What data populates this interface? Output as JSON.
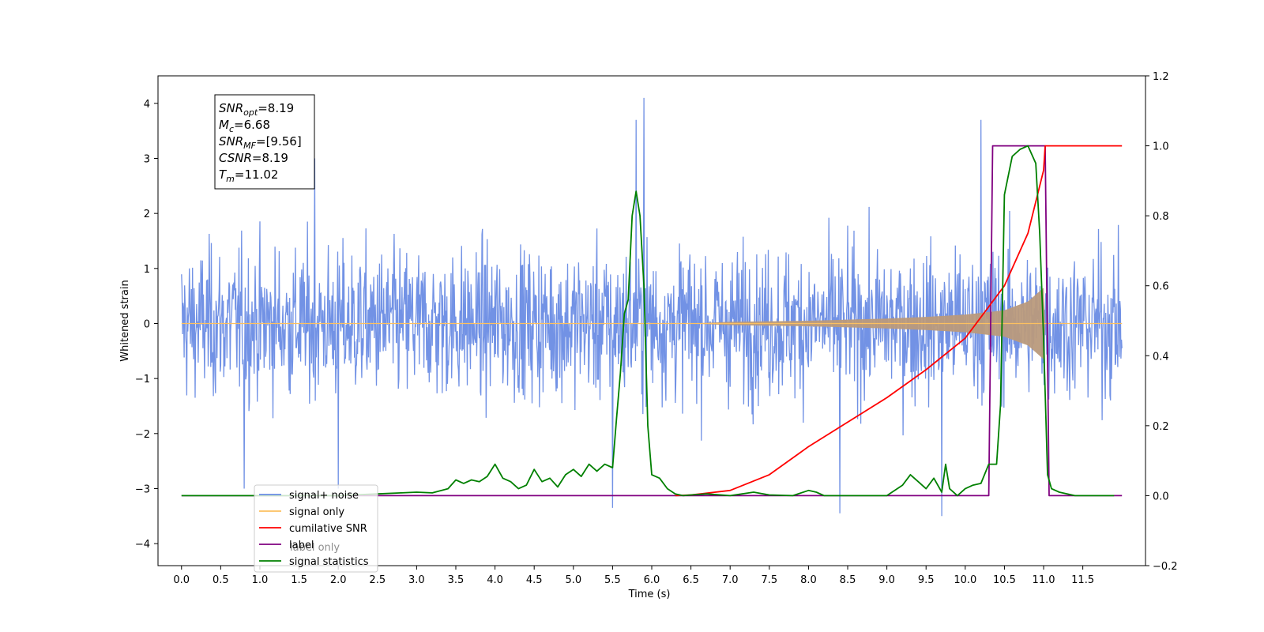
{
  "chart_data": {
    "type": "line",
    "xlabel": "Time (s)",
    "ylabel_left": "Whitened strain",
    "ylabel_right": "",
    "x_ticks": [
      "0.0",
      "0.5",
      "1.0",
      "1.5",
      "2.0",
      "2.5",
      "3.0",
      "3.5",
      "4.0",
      "4.5",
      "5.0",
      "5.5",
      "6.0",
      "6.5",
      "7.0",
      "7.5",
      "8.0",
      "8.5",
      "9.0",
      "9.5",
      "10.0",
      "10.5",
      "11.0",
      "11.5"
    ],
    "y_left_ticks": [
      "4",
      "3",
      "2",
      "1",
      "0",
      "−1",
      "−2",
      "−3",
      "−4"
    ],
    "y_right_ticks": [
      "1.2",
      "1.0",
      "0.8",
      "0.6",
      "0.4",
      "0.2",
      "0.0",
      "−0.2"
    ],
    "xlim": [
      -0.3,
      12.3
    ],
    "ylim_left": [
      -4.4,
      4.5
    ],
    "ylim_right": [
      -0.2,
      1.2
    ],
    "annotation": [
      {
        "base": "SNR",
        "sub": "opt",
        "rest": "=8.19"
      },
      {
        "base": "M",
        "sub": "c",
        "rest": "=6.68"
      },
      {
        "base": "SNR",
        "sub": "MF",
        "rest": "=[9.56]"
      },
      {
        "base": "CSNR",
        "sub": "",
        "rest": "=8.19"
      },
      {
        "base": "T",
        "sub": "m",
        "rest": "=11.02"
      }
    ],
    "legend": {
      "placement": "lower-left",
      "entries": [
        {
          "label": "signal+ noise",
          "color": "#6a8ce4"
        },
        {
          "label": "signal only",
          "color": "#fcc060"
        },
        {
          "label": "cumilative SNR",
          "color": "#ff0000"
        },
        {
          "label": "label",
          "color": "#800080"
        },
        {
          "label": "signal statistics",
          "color": "#008000"
        }
      ],
      "occluded_text": [
        "label only"
      ]
    },
    "series": [
      {
        "name": "signal+ noise",
        "axis": "left",
        "color": "#6a8ce4",
        "x_range": [
          0.0,
          12.0
        ],
        "typical_amplitude": 1.8,
        "peaks": [
          {
            "x": 5.9,
            "y": 4.1
          },
          {
            "x": 5.8,
            "y": 3.7
          },
          {
            "x": 10.2,
            "y": 3.7
          },
          {
            "x": 1.7,
            "y": 3.0
          },
          {
            "x": 5.5,
            "y": -3.35
          },
          {
            "x": 8.4,
            "y": -3.45
          },
          {
            "x": 9.7,
            "y": -3.5
          },
          {
            "x": 0.8,
            "y": -3.0
          },
          {
            "x": 2.0,
            "y": -3.0
          }
        ]
      },
      {
        "name": "signal only",
        "axis": "left",
        "color": "#fcc060",
        "envelope_x": [
          0.0,
          6.5,
          7.0,
          8.0,
          9.0,
          9.5,
          10.0,
          10.5,
          10.8,
          11.0,
          11.02,
          12.0
        ],
        "envelope_y": [
          0.0,
          0.0,
          0.03,
          0.05,
          0.09,
          0.12,
          0.16,
          0.24,
          0.4,
          0.65,
          0.0,
          0.0
        ]
      },
      {
        "name": "cumilative SNR",
        "axis": "right",
        "color": "#ff0000",
        "x": [
          6.3,
          6.5,
          7.0,
          7.5,
          8.0,
          8.5,
          9.0,
          9.5,
          10.0,
          10.5,
          10.8,
          11.0,
          11.02,
          12.0
        ],
        "values": [
          0.0,
          0.002,
          0.015,
          0.06,
          0.14,
          0.21,
          0.28,
          0.36,
          0.45,
          0.6,
          0.75,
          0.93,
          1.0,
          1.0
        ]
      },
      {
        "name": "label",
        "axis": "right",
        "color": "#800080",
        "x": [
          0.0,
          10.3,
          10.35,
          11.02,
          11.07,
          12.0
        ],
        "values": [
          0.0,
          0.0,
          1.0,
          1.0,
          0.0,
          0.0
        ]
      },
      {
        "name": "signal statistics",
        "axis": "right",
        "color": "#008000",
        "x": [
          0.0,
          2.0,
          2.5,
          2.8,
          3.0,
          3.2,
          3.4,
          3.5,
          3.6,
          3.7,
          3.8,
          3.9,
          4.0,
          4.1,
          4.2,
          4.3,
          4.4,
          4.5,
          4.6,
          4.7,
          4.8,
          4.9,
          5.0,
          5.1,
          5.2,
          5.3,
          5.4,
          5.5,
          5.55,
          5.6,
          5.65,
          5.7,
          5.75,
          5.8,
          5.85,
          5.9,
          5.95,
          6.0,
          6.1,
          6.2,
          6.3,
          6.4,
          6.5,
          6.7,
          7.0,
          7.3,
          7.5,
          7.8,
          8.0,
          8.1,
          8.2,
          8.5,
          9.0,
          9.2,
          9.3,
          9.4,
          9.5,
          9.6,
          9.7,
          9.75,
          9.8,
          9.9,
          10.0,
          10.1,
          10.2,
          10.3,
          10.4,
          10.45,
          10.5,
          10.6,
          10.7,
          10.8,
          10.9,
          10.95,
          11.0,
          11.05,
          11.1,
          11.2,
          11.4,
          11.6,
          11.9
        ],
        "values": [
          0.0,
          0.0,
          0.005,
          0.008,
          0.01,
          0.008,
          0.02,
          0.045,
          0.035,
          0.045,
          0.04,
          0.055,
          0.09,
          0.05,
          0.04,
          0.02,
          0.03,
          0.075,
          0.04,
          0.05,
          0.025,
          0.06,
          0.075,
          0.055,
          0.09,
          0.07,
          0.09,
          0.08,
          0.22,
          0.35,
          0.52,
          0.56,
          0.8,
          0.87,
          0.8,
          0.6,
          0.2,
          0.06,
          0.05,
          0.02,
          0.005,
          0.0,
          0.002,
          0.005,
          0.0,
          0.01,
          0.002,
          0.0,
          0.015,
          0.01,
          0.0,
          0.0,
          0.0,
          0.03,
          0.06,
          0.04,
          0.02,
          0.05,
          0.01,
          0.09,
          0.02,
          0.0,
          0.02,
          0.03,
          0.035,
          0.09,
          0.09,
          0.26,
          0.86,
          0.97,
          0.99,
          1.0,
          0.95,
          0.75,
          0.45,
          0.06,
          0.02,
          0.01,
          0.0,
          0.0,
          0.0
        ]
      }
    ]
  }
}
